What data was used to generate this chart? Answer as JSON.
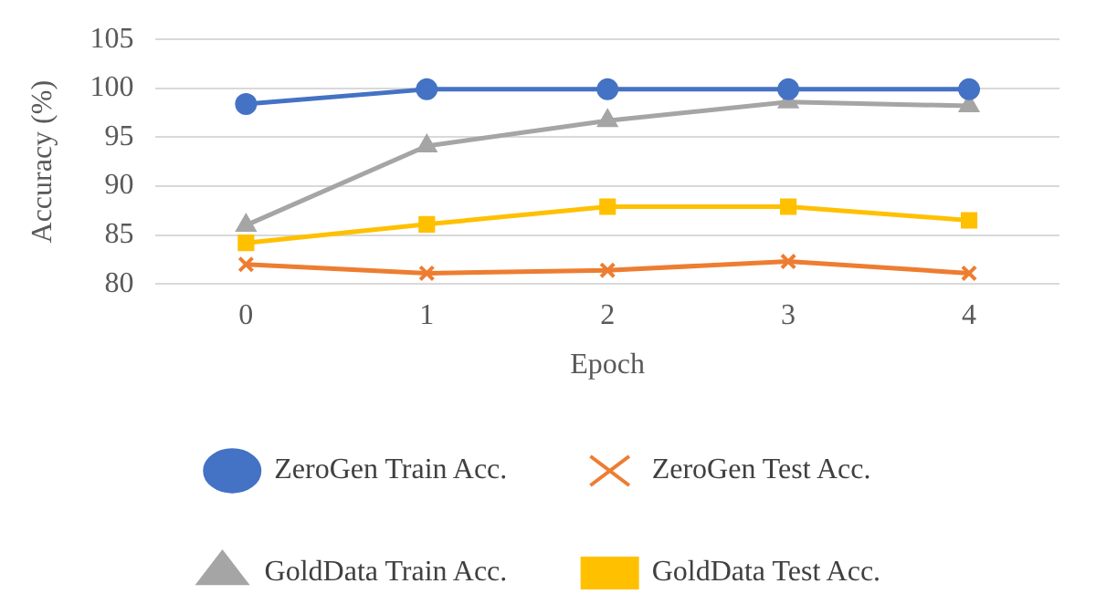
{
  "chart_data": {
    "type": "line",
    "xlabel": "Epoch",
    "ylabel": "Accuracy (%)",
    "categories": [
      "0",
      "1",
      "2",
      "3",
      "4"
    ],
    "series": [
      {
        "name": "ZeroGen Train Acc.",
        "color": "#4472c4",
        "marker": "circle",
        "values": [
          98.4,
          99.9,
          99.9,
          99.9,
          99.9
        ]
      },
      {
        "name": "ZeroGen Test Acc.",
        "color": "#ed7d31",
        "marker": "cross",
        "values": [
          82.0,
          81.1,
          81.4,
          82.3,
          81.1
        ]
      },
      {
        "name": "GoldData Train Acc.",
        "color": "#a5a5a5",
        "marker": "triangle",
        "values": [
          86.0,
          94.1,
          96.7,
          98.6,
          98.2
        ]
      },
      {
        "name": "GoldData Test Acc.",
        "color": "#ffc000",
        "marker": "square",
        "values": [
          84.2,
          86.1,
          87.9,
          87.9,
          86.5
        ]
      }
    ],
    "ylim": [
      80,
      105
    ],
    "yticks": [
      80,
      85,
      90,
      95,
      100,
      105
    ],
    "grid": "y",
    "legend": "bottom"
  }
}
